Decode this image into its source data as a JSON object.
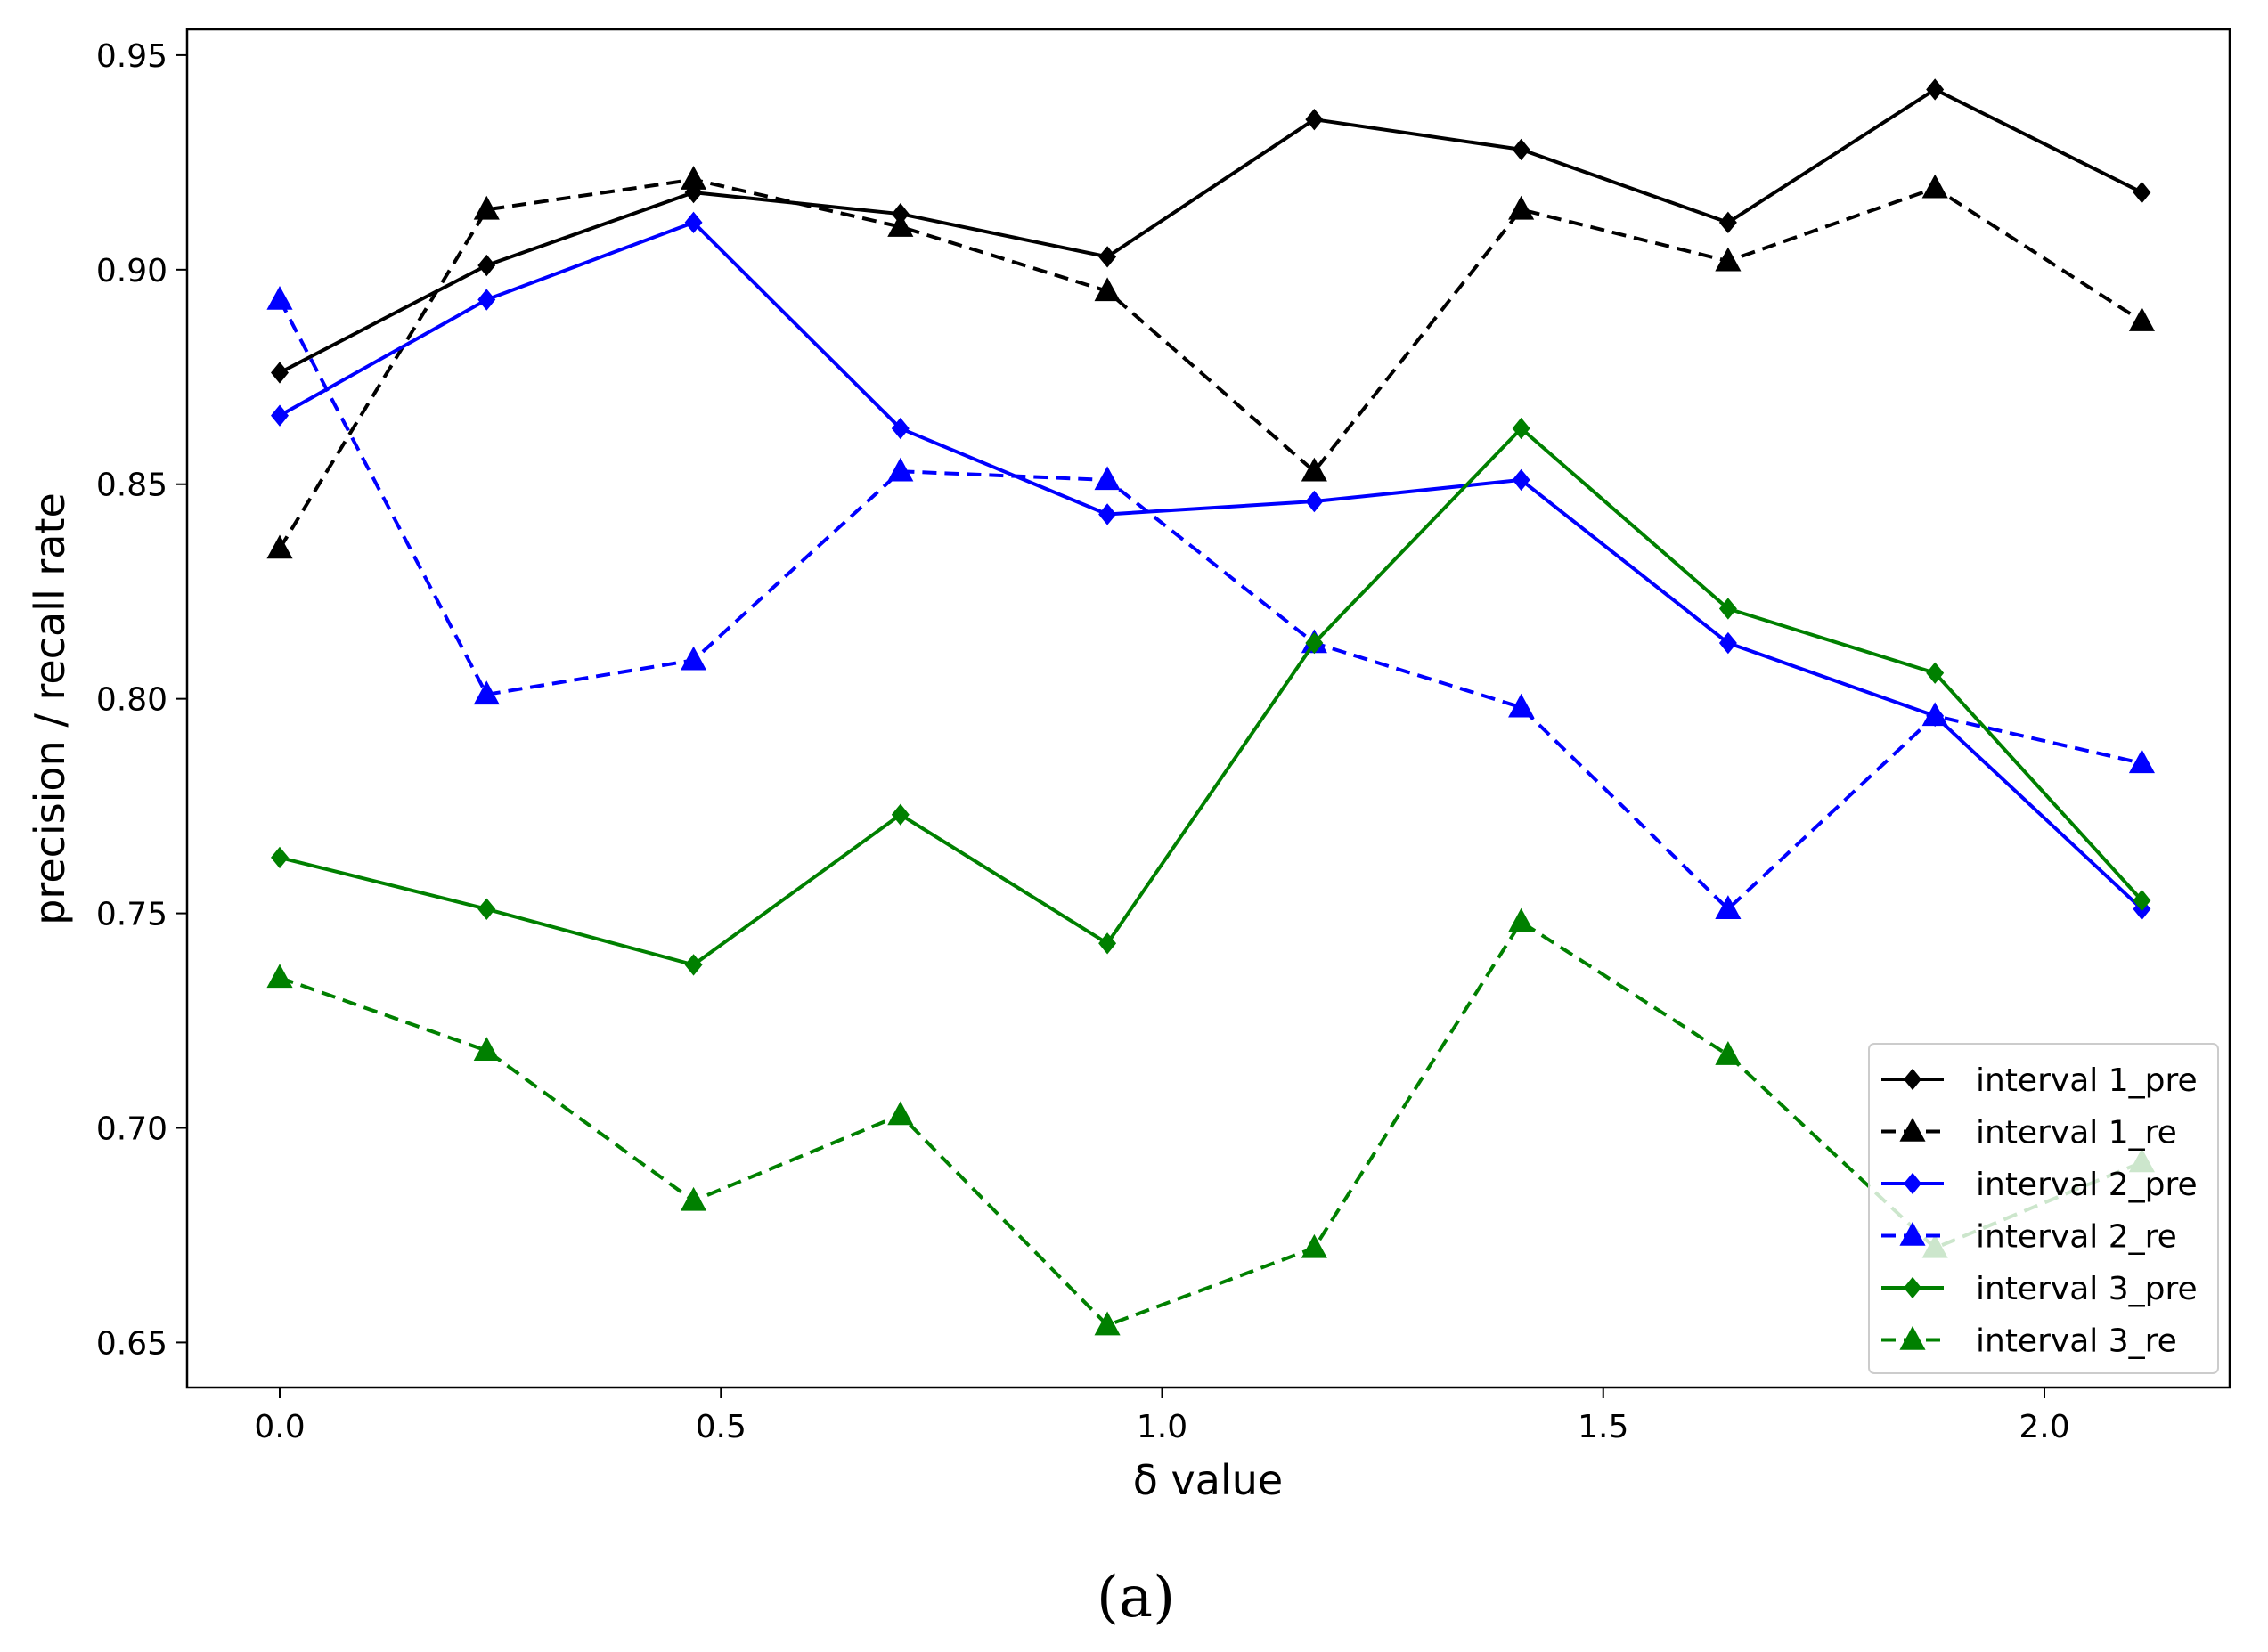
{
  "chart_data": {
    "type": "line",
    "title": "",
    "xlabel": "δ value",
    "ylabel": "precision / recall rate",
    "xlim": [
      -0.105,
      2.21
    ],
    "ylim": [
      0.6395,
      0.956
    ],
    "x": [
      0.0,
      0.2345,
      0.469,
      0.7035,
      0.938,
      1.1725,
      1.407,
      1.6415,
      1.876,
      2.1105
    ],
    "x_ticks": [
      0.0,
      0.5,
      1.0,
      1.5,
      2.0
    ],
    "x_tick_labels": [
      "0.0",
      "0.5",
      "1.0",
      "1.5",
      "2.0"
    ],
    "y_ticks": [
      0.65,
      0.7,
      0.75,
      0.8,
      0.85,
      0.9,
      0.95
    ],
    "y_tick_labels": [
      "0.65",
      "0.70",
      "0.75",
      "0.80",
      "0.85",
      "0.90",
      "0.95"
    ],
    "grid": false,
    "legend_position": "lower-right",
    "series": [
      {
        "name": "interval 1_pre",
        "color": "#000000",
        "dash": "solid",
        "marker": "diamond",
        "values": [
          0.876,
          0.901,
          0.918,
          0.913,
          0.903,
          0.935,
          0.928,
          0.911,
          0.942,
          0.918
        ]
      },
      {
        "name": "interval 1_re",
        "color": "#000000",
        "dash": "dashed",
        "marker": "triangle",
        "values": [
          0.835,
          0.914,
          0.921,
          0.91,
          0.895,
          0.853,
          0.914,
          0.902,
          0.919,
          0.888
        ]
      },
      {
        "name": "interval 2_pre",
        "color": "#0000ff",
        "dash": "solid",
        "marker": "diamond",
        "values": [
          0.866,
          0.893,
          0.911,
          0.863,
          0.843,
          0.846,
          0.851,
          0.813,
          0.796,
          0.751
        ]
      },
      {
        "name": "interval 2_re",
        "color": "#0000ff",
        "dash": "dashed",
        "marker": "triangle",
        "values": [
          0.893,
          0.801,
          0.809,
          0.853,
          0.851,
          0.813,
          0.798,
          0.751,
          0.796,
          0.785
        ]
      },
      {
        "name": "interval 3_pre",
        "color": "#008000",
        "dash": "solid",
        "marker": "diamond",
        "values": [
          0.763,
          0.751,
          0.738,
          0.773,
          0.743,
          0.813,
          0.863,
          0.821,
          0.806,
          0.753
        ]
      },
      {
        "name": "interval 3_re",
        "color": "#008000",
        "dash": "dashed",
        "marker": "triangle",
        "values": [
          0.735,
          0.718,
          0.683,
          0.703,
          0.654,
          0.672,
          0.748,
          0.717,
          0.672,
          0.692
        ]
      }
    ]
  },
  "caption": "(a)"
}
